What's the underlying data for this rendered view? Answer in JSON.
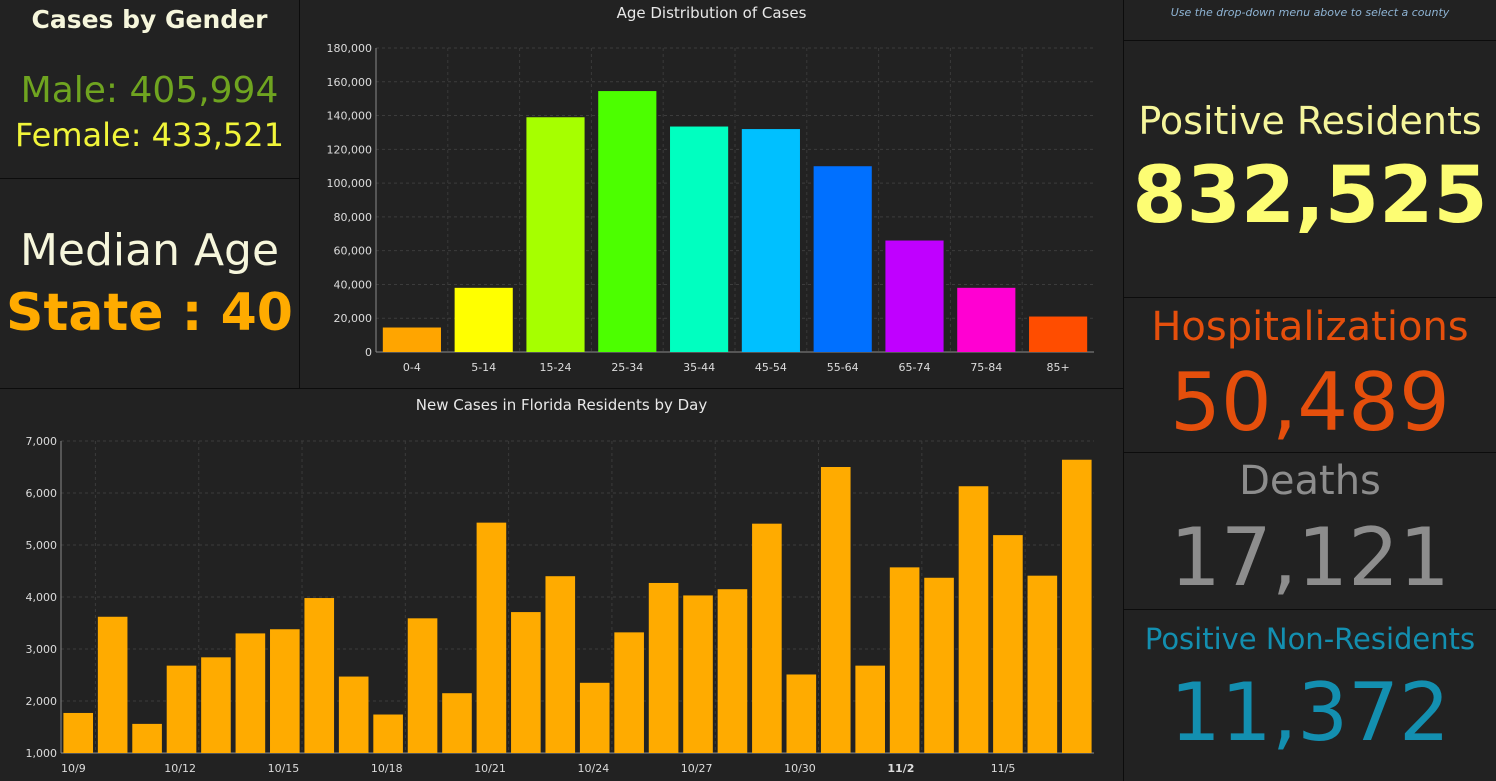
{
  "gender": {
    "title": "Cases by Gender",
    "male": "Male: 405,994",
    "female": "Female: 433,521"
  },
  "median": {
    "label": "Median Age",
    "value": "State : 40"
  },
  "info": {
    "text": "Use the drop-down menu above to select a county"
  },
  "positive_residents": {
    "label": "Positive Residents",
    "value": "832,525"
  },
  "hospitalizations": {
    "label": "Hospitalizations",
    "value": "50,489"
  },
  "deaths": {
    "label": "Deaths",
    "value": "17,121"
  },
  "positive_nonresidents": {
    "label": "Positive Non-Residents",
    "value": "11,372"
  },
  "colors": {
    "background": "#222222",
    "male": "#6fa420",
    "female": "#f1f53a",
    "median": "#ffab00",
    "positive": "#fdfd73",
    "hospitalizations": "#e54f0c",
    "deaths": "#8d8d8d",
    "nonresidents": "#138fb0",
    "daily_bar": "#ffab00"
  },
  "chart_data": [
    {
      "type": "bar",
      "title": "Age Distribution of Cases",
      "categories": [
        "0-4",
        "5-14",
        "15-24",
        "25-34",
        "35-44",
        "45-54",
        "55-64",
        "65-74",
        "75-84",
        "85+"
      ],
      "values": [
        14500,
        38000,
        139000,
        154500,
        133500,
        132000,
        110000,
        66000,
        38000,
        21000
      ],
      "colors": [
        "#ffa500",
        "#ffff00",
        "#a6ff00",
        "#4cff00",
        "#00ffc0",
        "#00c0ff",
        "#0070ff",
        "#c000ff",
        "#ff00d2",
        "#ff4d00"
      ],
      "ylim": [
        0,
        180000
      ],
      "yticks": [
        "0",
        "20,000",
        "40,000",
        "60,000",
        "80,000",
        "100,000",
        "120,000",
        "140,000",
        "160,000",
        "180,000"
      ],
      "grid": true
    },
    {
      "type": "bar",
      "title": "New Cases in Florida Residents by Day",
      "categories": [
        "10/9",
        "10/10",
        "10/11",
        "10/12",
        "10/13",
        "10/14",
        "10/15",
        "10/16",
        "10/17",
        "10/18",
        "10/19",
        "10/20",
        "10/21",
        "10/22",
        "10/23",
        "10/24",
        "10/25",
        "10/26",
        "10/27",
        "10/28",
        "10/29",
        "10/30",
        "10/31",
        "11/1",
        "11/2",
        "11/3",
        "11/4",
        "11/5",
        "11/6",
        "11/7"
      ],
      "x_tick_labels": [
        "10/9",
        "10/12",
        "10/15",
        "10/18",
        "10/21",
        "10/24",
        "10/27",
        "10/30",
        "11/2",
        "11/5"
      ],
      "bold_tick_label": "11/2",
      "values": [
        1770,
        3620,
        1560,
        2680,
        2840,
        3300,
        3380,
        3980,
        2470,
        1740,
        3590,
        2150,
        5430,
        3710,
        4400,
        2350,
        3320,
        4270,
        4030,
        4150,
        5410,
        2510,
        6500,
        2680,
        4570,
        4370,
        6130,
        5190,
        4410,
        6640
      ],
      "ylim": [
        1000,
        7000
      ],
      "yticks": [
        "1,000",
        "2,000",
        "3,000",
        "4,000",
        "5,000",
        "6,000",
        "7,000"
      ],
      "grid": true
    }
  ]
}
